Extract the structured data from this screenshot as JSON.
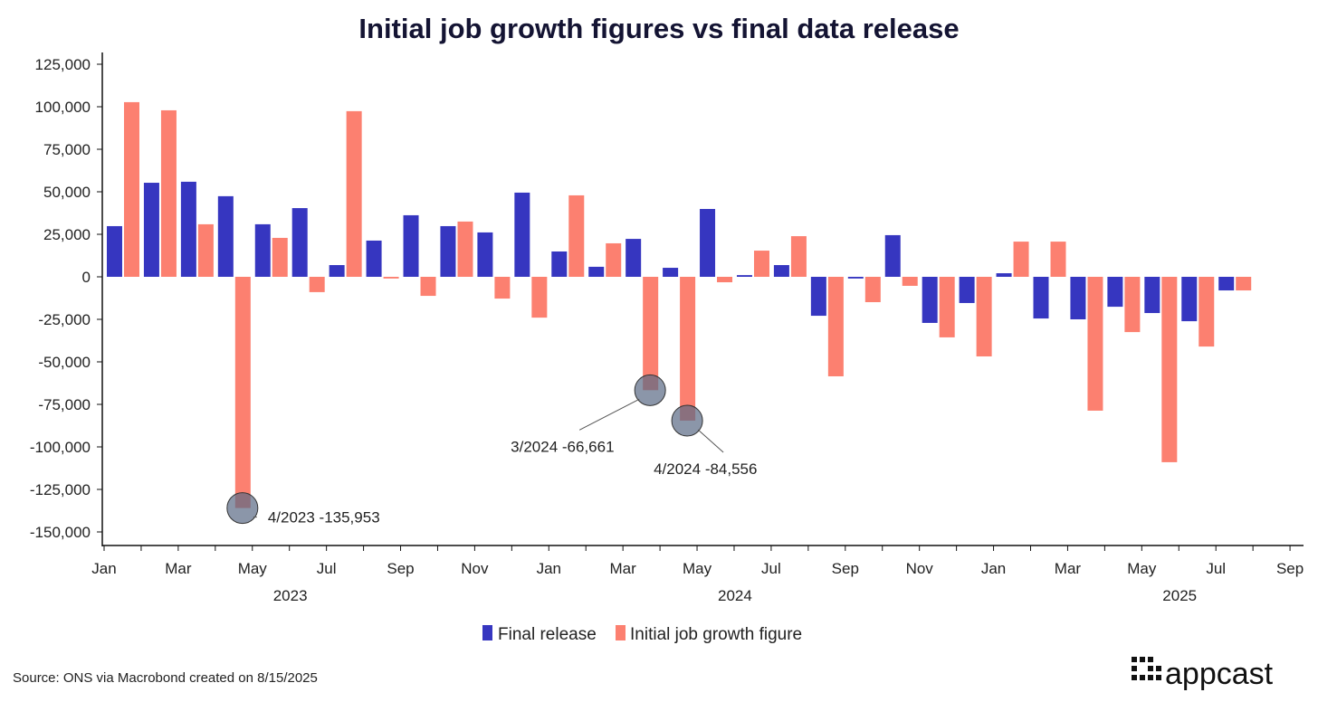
{
  "chart_data": {
    "type": "bar",
    "title": "Initial job growth figures vs final data release",
    "xlabel": "",
    "ylabel": "",
    "ylim": [
      -150000,
      125000
    ],
    "yticks": [
      125000,
      100000,
      75000,
      50000,
      25000,
      0,
      -25000,
      -50000,
      -75000,
      -100000,
      -125000,
      -150000
    ],
    "ytick_labels": [
      "125,000",
      "100,000",
      "75,000",
      "50,000",
      "25,000",
      "0",
      "-25,000",
      "-50,000",
      "-75,000",
      "-100,000",
      "-125,000",
      "-150,000"
    ],
    "xtick_labels": [
      "Jan",
      "Mar",
      "May",
      "Jul",
      "Sep",
      "Nov",
      "Jan",
      "Mar",
      "May",
      "Jul",
      "Sep",
      "Nov",
      "Jan",
      "Mar",
      "May",
      "Jul",
      "Sep"
    ],
    "year_labels": [
      "2023",
      "2024",
      "2025"
    ],
    "categories": [
      "2023-01",
      "2023-02",
      "2023-03",
      "2023-04",
      "2023-05",
      "2023-06",
      "2023-07",
      "2023-08",
      "2023-09",
      "2023-10",
      "2023-11",
      "2023-12",
      "2024-01",
      "2024-02",
      "2024-03",
      "2024-04",
      "2024-05",
      "2024-06",
      "2024-07",
      "2024-08",
      "2024-09",
      "2024-10",
      "2024-11",
      "2024-12",
      "2025-01",
      "2025-02",
      "2025-03",
      "2025-04",
      "2025-05",
      "2025-06",
      "2025-07"
    ],
    "series": [
      {
        "name": "Final release",
        "color": "#3636c0",
        "values": [
          29800,
          55300,
          55900,
          47400,
          30900,
          40400,
          6900,
          21300,
          36200,
          29800,
          26100,
          49500,
          14900,
          5900,
          22300,
          5300,
          39900,
          1000,
          6900,
          -22900,
          -1000,
          24500,
          -27100,
          -15400,
          2100,
          -24500,
          -25000,
          -17600,
          -21300,
          -26100,
          -8000
        ]
      },
      {
        "name": "Initial job growth figure",
        "color": "#fc8070",
        "values": [
          102700,
          97900,
          30900,
          -135953,
          22900,
          -9000,
          97400,
          -1000,
          -11200,
          32500,
          -12800,
          -24000,
          47900,
          19700,
          -66661,
          -84556,
          -3200,
          15400,
          23900,
          -58500,
          -14900,
          -5300,
          -35600,
          -46800,
          20700,
          20700,
          -78700,
          -32500,
          -109000,
          -41000,
          -8000
        ]
      }
    ],
    "annotations": [
      {
        "label": "4/2023 -135,953",
        "month": 3,
        "value": -135953
      },
      {
        "label": "3/2024 -66,661",
        "month": 14,
        "value": -66661
      },
      {
        "label": "4/2024 -84,556",
        "month": 15,
        "value": -84556
      }
    ],
    "legend_position": "bottom"
  },
  "source": "Source: ONS via Macrobond created on 8/15/2025",
  "logo": "appcast"
}
